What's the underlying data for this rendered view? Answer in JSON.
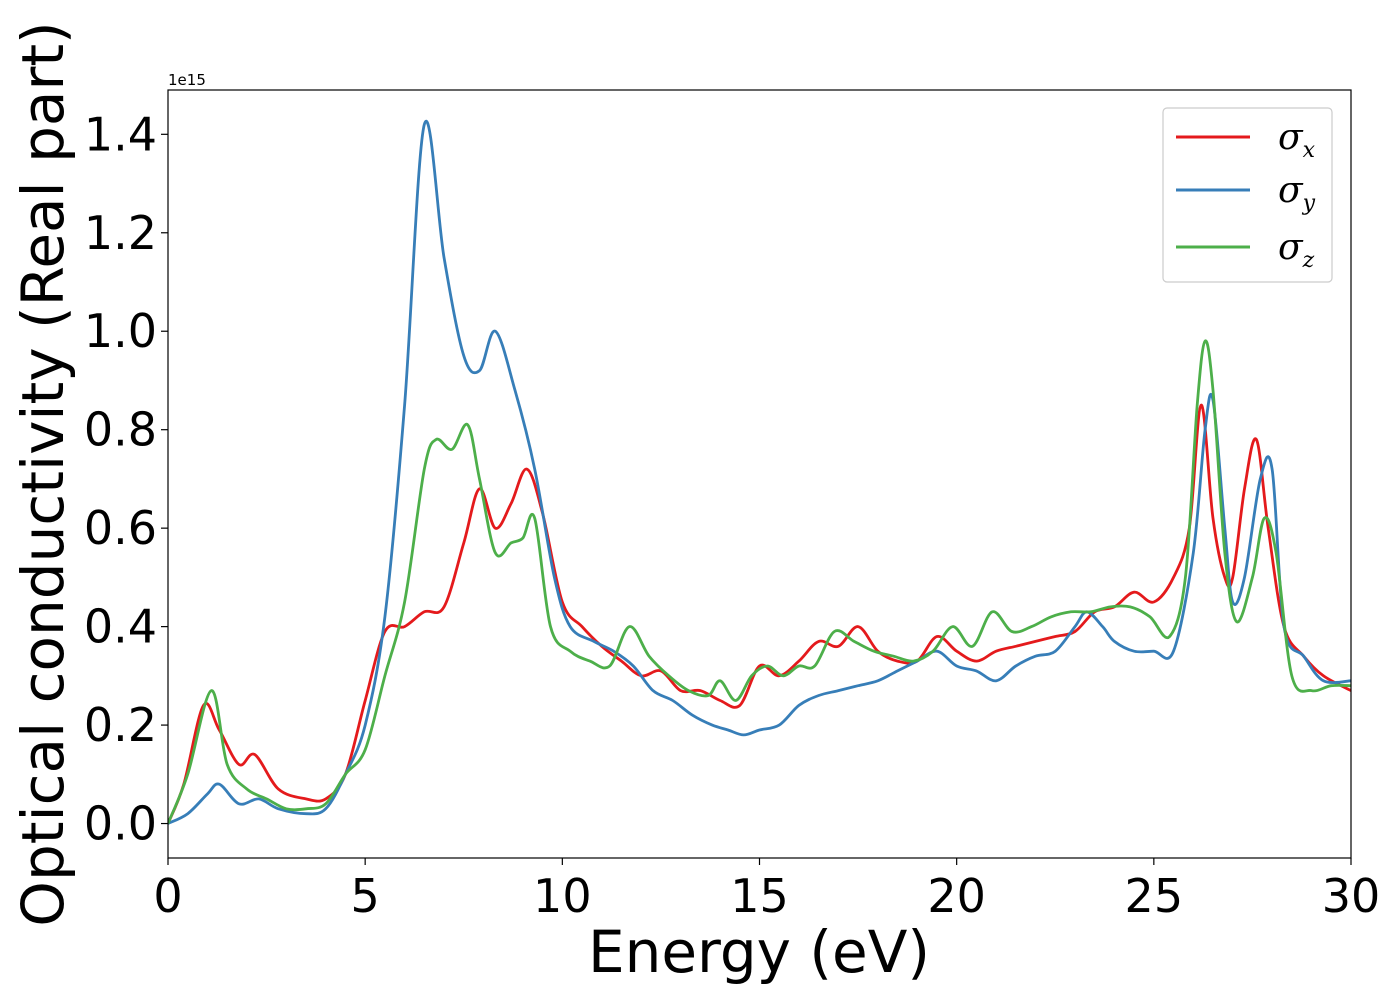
{
  "chart_data": {
    "type": "line",
    "xlabel": "Energy (eV)",
    "ylabel": "Optical conductivity (Real part)",
    "y_offset_label": "1e15",
    "xlim": [
      0,
      30
    ],
    "ylim": [
      -0.07,
      1.49
    ],
    "xticks": [
      0,
      5,
      10,
      15,
      20,
      25,
      30
    ],
    "xtick_labels": [
      "0",
      "5",
      "10",
      "15",
      "20",
      "25",
      "30"
    ],
    "yticks": [
      0.0,
      0.2,
      0.4,
      0.6,
      0.8,
      1.0,
      1.2,
      1.4
    ],
    "ytick_labels": [
      "0.0",
      "0.2",
      "0.4",
      "0.6",
      "0.8",
      "1.0",
      "1.2",
      "1.4"
    ],
    "grid": false,
    "legend_position": "top-right",
    "series": [
      {
        "name": "σx",
        "legend_symbol": "σ",
        "legend_subscript": "x",
        "color": "#e41a1c",
        "x": [
          0,
          0.4,
          0.9,
          1.3,
          1.8,
          2.2,
          2.8,
          3.5,
          4.0,
          4.5,
          5.0,
          5.5,
          6.0,
          6.5,
          7.0,
          7.5,
          7.9,
          8.3,
          8.7,
          9.1,
          9.5,
          10.0,
          10.5,
          11.0,
          11.5,
          12.0,
          12.5,
          13.0,
          13.5,
          14.0,
          14.5,
          15.0,
          15.5,
          16.0,
          16.5,
          17.0,
          17.5,
          18.0,
          18.5,
          19.0,
          19.5,
          20.0,
          20.5,
          21.0,
          21.5,
          22.0,
          22.5,
          23.0,
          23.5,
          24.0,
          24.5,
          25.0,
          25.5,
          25.9,
          26.2,
          26.5,
          26.8,
          27.0,
          27.3,
          27.6,
          27.9,
          28.3,
          28.8,
          29.3,
          30.0
        ],
        "y": [
          0.0,
          0.08,
          0.24,
          0.19,
          0.12,
          0.14,
          0.07,
          0.05,
          0.05,
          0.1,
          0.25,
          0.39,
          0.4,
          0.43,
          0.44,
          0.57,
          0.68,
          0.6,
          0.65,
          0.72,
          0.63,
          0.45,
          0.4,
          0.36,
          0.33,
          0.3,
          0.31,
          0.27,
          0.27,
          0.25,
          0.24,
          0.32,
          0.3,
          0.33,
          0.37,
          0.36,
          0.4,
          0.35,
          0.33,
          0.33,
          0.38,
          0.35,
          0.33,
          0.35,
          0.36,
          0.37,
          0.38,
          0.39,
          0.43,
          0.44,
          0.47,
          0.45,
          0.5,
          0.6,
          0.85,
          0.62,
          0.5,
          0.5,
          0.68,
          0.78,
          0.6,
          0.4,
          0.34,
          0.3,
          0.27
        ]
      },
      {
        "name": "σy",
        "legend_symbol": "σ",
        "legend_subscript": "y",
        "color": "#377eb8",
        "x": [
          0,
          0.5,
          1.0,
          1.3,
          1.8,
          2.3,
          2.8,
          3.5,
          4.0,
          4.5,
          5.0,
          5.5,
          6.0,
          6.5,
          7.0,
          7.5,
          7.9,
          8.3,
          8.8,
          9.3,
          9.8,
          10.2,
          10.8,
          11.3,
          11.8,
          12.3,
          12.8,
          13.3,
          13.8,
          14.2,
          14.6,
          15.0,
          15.5,
          16.0,
          16.5,
          17.0,
          17.5,
          18.0,
          18.5,
          19.0,
          19.5,
          20.0,
          20.5,
          21.0,
          21.5,
          22.0,
          22.5,
          23.0,
          23.3,
          23.7,
          24.0,
          24.5,
          25.0,
          25.5,
          26.0,
          26.3,
          26.5,
          26.8,
          27.0,
          27.3,
          27.7,
          28.0,
          28.3,
          28.8,
          29.3,
          30.0
        ],
        "y": [
          0.0,
          0.02,
          0.06,
          0.08,
          0.04,
          0.05,
          0.03,
          0.02,
          0.03,
          0.1,
          0.2,
          0.42,
          0.85,
          1.42,
          1.15,
          0.95,
          0.92,
          1.0,
          0.88,
          0.72,
          0.5,
          0.4,
          0.37,
          0.35,
          0.32,
          0.27,
          0.25,
          0.22,
          0.2,
          0.19,
          0.18,
          0.19,
          0.2,
          0.24,
          0.26,
          0.27,
          0.28,
          0.29,
          0.31,
          0.33,
          0.35,
          0.32,
          0.31,
          0.29,
          0.32,
          0.34,
          0.35,
          0.4,
          0.43,
          0.4,
          0.37,
          0.35,
          0.35,
          0.35,
          0.55,
          0.8,
          0.86,
          0.6,
          0.45,
          0.5,
          0.7,
          0.72,
          0.4,
          0.34,
          0.29,
          0.29
        ]
      },
      {
        "name": "σz",
        "legend_symbol": "σ",
        "legend_subscript": "z",
        "color": "#4daf4a",
        "x": [
          0,
          0.5,
          1.1,
          1.5,
          2.0,
          2.5,
          3.0,
          3.5,
          4.0,
          4.5,
          5.0,
          5.5,
          6.0,
          6.5,
          6.8,
          7.2,
          7.6,
          7.9,
          8.3,
          8.7,
          9.0,
          9.3,
          9.7,
          10.2,
          10.7,
          11.2,
          11.7,
          12.2,
          12.7,
          13.2,
          13.7,
          14.0,
          14.4,
          14.8,
          15.2,
          15.6,
          16.0,
          16.4,
          16.9,
          17.4,
          17.9,
          18.4,
          18.9,
          19.4,
          19.9,
          20.4,
          20.9,
          21.4,
          21.9,
          22.4,
          22.9,
          23.4,
          23.9,
          24.4,
          24.9,
          25.4,
          25.8,
          26.1,
          26.3,
          26.5,
          26.8,
          27.1,
          27.5,
          27.8,
          28.1,
          28.5,
          29.0,
          29.5,
          30.0
        ],
        "y": [
          0.0,
          0.1,
          0.27,
          0.12,
          0.07,
          0.05,
          0.03,
          0.03,
          0.04,
          0.1,
          0.15,
          0.3,
          0.45,
          0.72,
          0.78,
          0.76,
          0.81,
          0.7,
          0.55,
          0.57,
          0.58,
          0.62,
          0.4,
          0.35,
          0.33,
          0.32,
          0.4,
          0.34,
          0.3,
          0.27,
          0.26,
          0.29,
          0.25,
          0.3,
          0.32,
          0.3,
          0.32,
          0.32,
          0.39,
          0.37,
          0.35,
          0.34,
          0.33,
          0.35,
          0.4,
          0.36,
          0.43,
          0.39,
          0.4,
          0.42,
          0.43,
          0.43,
          0.44,
          0.44,
          0.42,
          0.38,
          0.5,
          0.85,
          0.98,
          0.88,
          0.55,
          0.41,
          0.5,
          0.62,
          0.55,
          0.3,
          0.27,
          0.28,
          0.28
        ]
      }
    ]
  }
}
